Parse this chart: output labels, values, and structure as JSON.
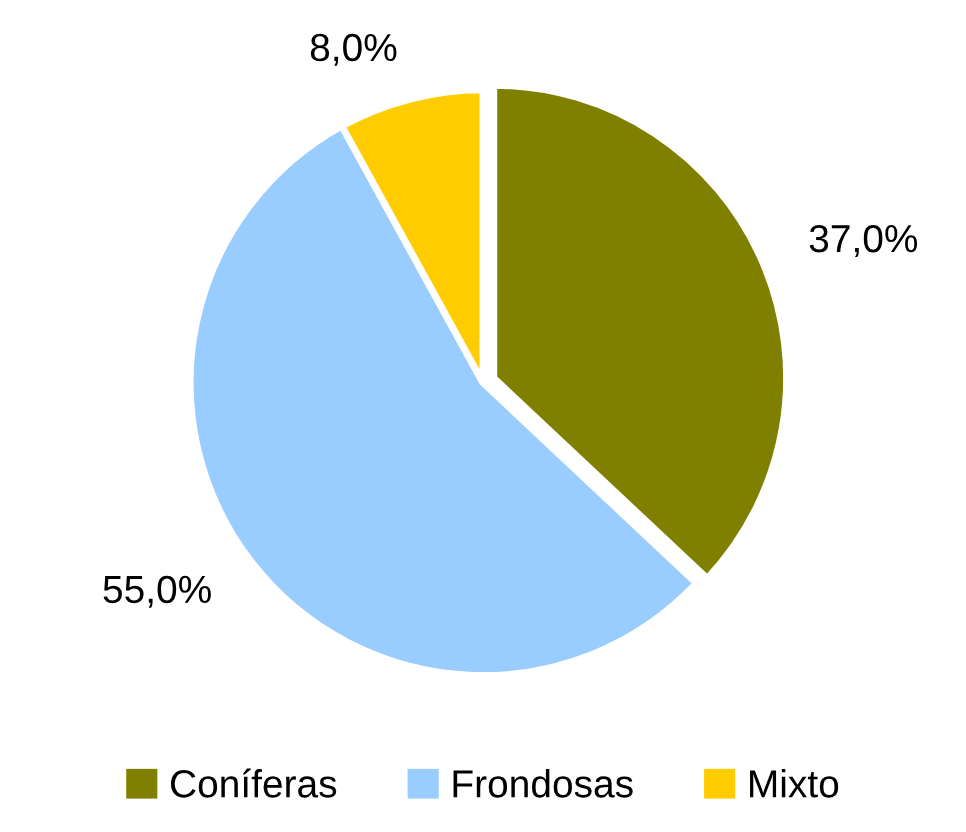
{
  "chart_data": {
    "type": "pie",
    "categories": [
      "Coníferas",
      "Frondosas",
      "Mixto"
    ],
    "values": [
      37,
      55,
      8
    ],
    "colors": [
      "#808000",
      "#99ccff",
      "#ffcc00"
    ],
    "value_labels": [
      "37,0%",
      "55,0%",
      "8,0%"
    ],
    "legend": "bottom"
  }
}
